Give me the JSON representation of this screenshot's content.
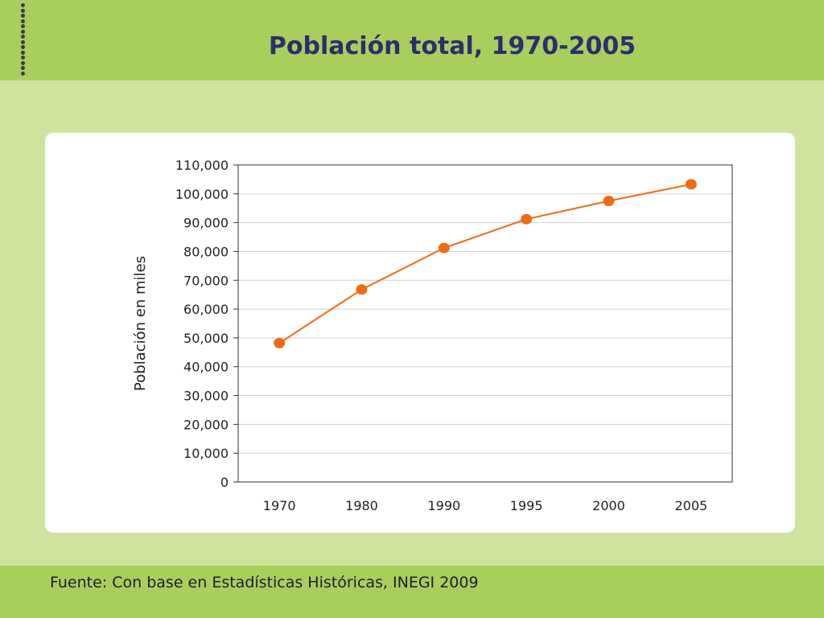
{
  "slide": {
    "title": "Población total, 1970-2005",
    "source": "Fuente: Con base en Estadísticas Históricas, INEGI 2009"
  },
  "colors": {
    "band": "#a8cf5c",
    "background": "#cfe29e",
    "title": "#2b2f6e",
    "series": "#ef6a14"
  },
  "chart_data": {
    "type": "line",
    "title": "Población total, 1970-2005",
    "xlabel": "",
    "ylabel": "Población en miles",
    "categories": [
      "1970",
      "1980",
      "1990",
      "1995",
      "2000",
      "2005"
    ],
    "series": [
      {
        "values": [
          48200,
          66800,
          81200,
          91200,
          97500,
          103300
        ]
      }
    ],
    "ylim": [
      0,
      110000
    ],
    "yticks": [
      "0",
      "10,000",
      "20,000",
      "30,000",
      "40,000",
      "50,000",
      "60,000",
      "70,000",
      "80,000",
      "90,000",
      "100,000",
      "110,000"
    ],
    "grid": true,
    "legend": "none"
  }
}
